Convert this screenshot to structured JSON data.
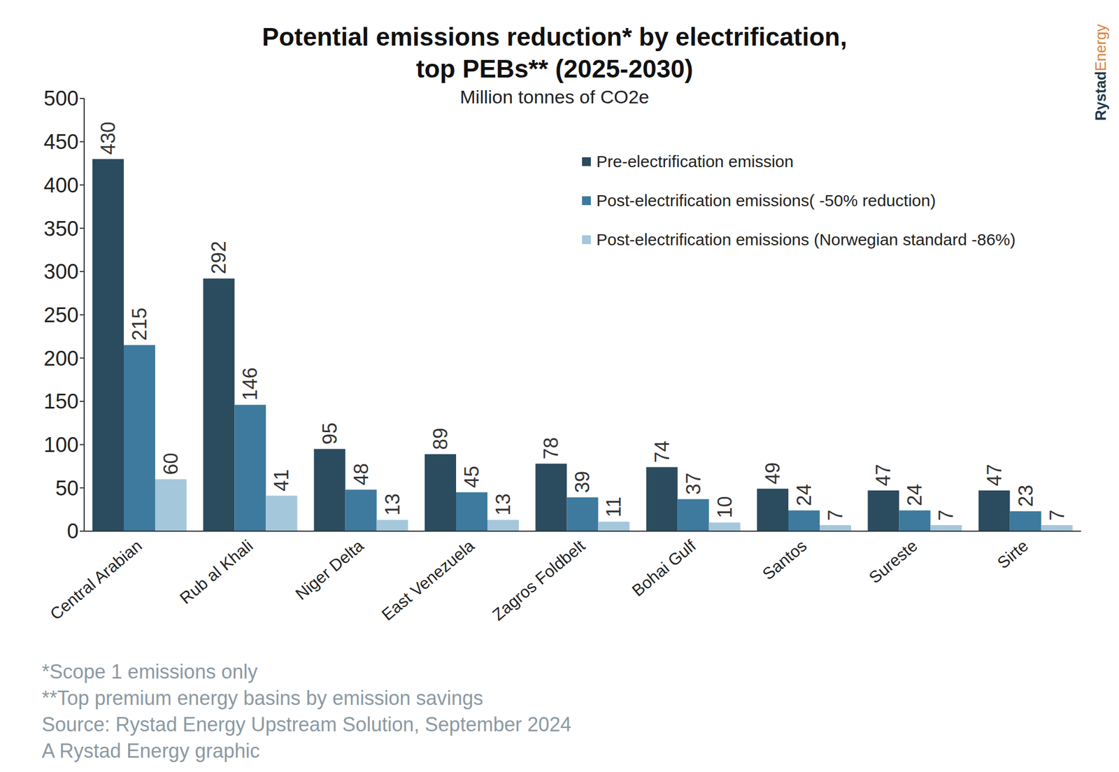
{
  "chart_data": {
    "type": "bar",
    "title": [
      "Potential emissions reduction* by electrification,",
      "top PEBs** (2025-2030)"
    ],
    "subtitle": "Million tonnes of CO2e",
    "categories": [
      "Central Arabian",
      "Rub al Khali",
      "Niger Delta",
      "East Venezuela",
      "Zagros Foldbelt",
      "Bohai Gulf",
      "Santos",
      "Sureste",
      "Sirte"
    ],
    "series": [
      {
        "name": "Pre-electrification emission",
        "color": "#2b4b5f",
        "values": [
          430,
          292,
          95,
          89,
          78,
          74,
          49,
          47,
          47
        ]
      },
      {
        "name": "Post-electrification emissions( -50% reduction)",
        "color": "#3d7a9d",
        "values": [
          215,
          146,
          48,
          45,
          39,
          37,
          24,
          24,
          23
        ]
      },
      {
        "name": "Post-electrification emissions (Norwegian standard -86%)",
        "color": "#a4c7dc",
        "values": [
          60,
          41,
          13,
          13,
          11,
          10,
          7,
          7,
          7
        ]
      }
    ],
    "ylim": [
      0,
      500
    ],
    "yticks": [
      0,
      50,
      100,
      150,
      200,
      250,
      300,
      350,
      400,
      450,
      500
    ],
    "grid": false,
    "legend": "upper right",
    "data_labels": true,
    "footnotes": [
      "*Scope 1 emissions only",
      "**Top premium energy basins by emission savings",
      "Source: Rystad Energy Upstream Solution, September 2024",
      "A Rystad Energy graphic"
    ],
    "brand": [
      "Rystad",
      "Energy"
    ]
  }
}
